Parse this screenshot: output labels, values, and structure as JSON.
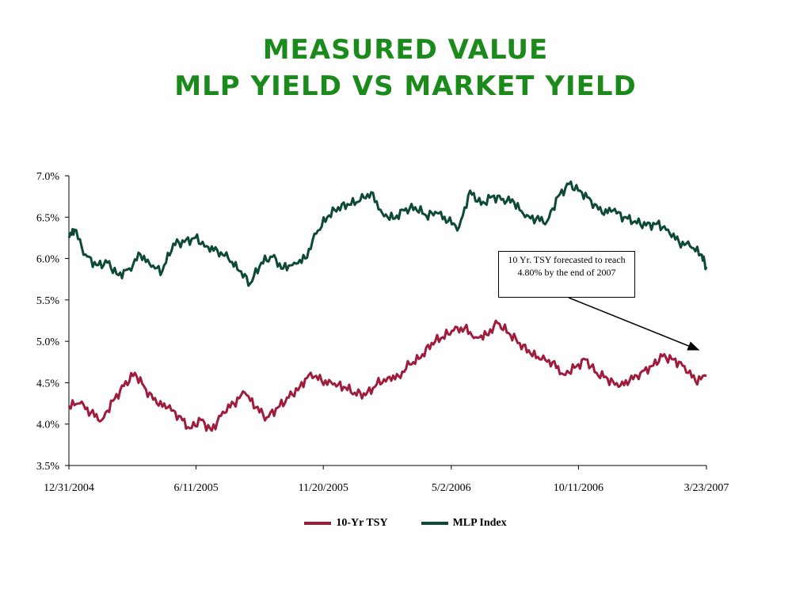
{
  "title": {
    "line1": "Measured Value",
    "line2": "MLP Yield vs Market Yield"
  },
  "annotation": {
    "text": "10 Yr. TSY forecasted to reach 4.80% by the end of 2007"
  },
  "colors": {
    "title": "#1a8a1a",
    "tsy": "#a01c3c",
    "mlp": "#0d4a34"
  },
  "chart_data": {
    "type": "line",
    "title": "",
    "xlabel": "",
    "ylabel": "",
    "ylim": [
      3.5,
      7.0
    ],
    "yticks": [
      "3.5%",
      "4.0%",
      "4.5%",
      "5.0%",
      "5.5%",
      "6.0%",
      "6.5%",
      "7.0%"
    ],
    "xticks": [
      "12/31/2004",
      "6/11/2005",
      "11/20/2005",
      "5/2/2006",
      "10/11/2006",
      "3/23/2007"
    ],
    "legend_position": "bottom",
    "grid": false,
    "series": [
      {
        "name": "10-Yr TSY",
        "color": "#a01c3c",
        "points": [
          [
            "12/31/2004",
            4.22
          ],
          [
            "1/14/2005",
            4.25
          ],
          [
            "1/28/2005",
            4.14
          ],
          [
            "2/11/2005",
            4.05
          ],
          [
            "2/25/2005",
            4.28
          ],
          [
            "3/11/2005",
            4.46
          ],
          [
            "3/25/2005",
            4.62
          ],
          [
            "4/8/2005",
            4.42
          ],
          [
            "4/22/2005",
            4.25
          ],
          [
            "5/6/2005",
            4.2
          ],
          [
            "5/20/2005",
            4.1
          ],
          [
            "6/3/2005",
            3.95
          ],
          [
            "6/17/2005",
            4.05
          ],
          [
            "7/1/2005",
            3.92
          ],
          [
            "7/15/2005",
            4.15
          ],
          [
            "7/29/2005",
            4.25
          ],
          [
            "8/12/2005",
            4.38
          ],
          [
            "8/26/2005",
            4.2
          ],
          [
            "9/9/2005",
            4.08
          ],
          [
            "9/23/2005",
            4.2
          ],
          [
            "10/7/2005",
            4.32
          ],
          [
            "10/21/2005",
            4.45
          ],
          [
            "11/4/2005",
            4.62
          ],
          [
            "11/18/2005",
            4.52
          ],
          [
            "12/2/2005",
            4.48
          ],
          [
            "12/16/2005",
            4.45
          ],
          [
            "12/30/2005",
            4.38
          ],
          [
            "1/13/2006",
            4.35
          ],
          [
            "1/27/2006",
            4.48
          ],
          [
            "2/10/2006",
            4.56
          ],
          [
            "2/24/2006",
            4.58
          ],
          [
            "3/10/2006",
            4.72
          ],
          [
            "3/24/2006",
            4.8
          ],
          [
            "4/7/2006",
            4.98
          ],
          [
            "4/21/2006",
            5.05
          ],
          [
            "5/5/2006",
            5.13
          ],
          [
            "5/19/2006",
            5.16
          ],
          [
            "6/2/2006",
            5.05
          ],
          [
            "6/16/2006",
            5.08
          ],
          [
            "6/30/2006",
            5.22
          ],
          [
            "7/14/2006",
            5.1
          ],
          [
            "7/28/2006",
            4.98
          ],
          [
            "8/11/2006",
            4.85
          ],
          [
            "8/25/2006",
            4.78
          ],
          [
            "9/8/2006",
            4.75
          ],
          [
            "9/22/2006",
            4.6
          ],
          [
            "10/6/2006",
            4.68
          ],
          [
            "10/20/2006",
            4.78
          ],
          [
            "11/3/2006",
            4.62
          ],
          [
            "11/17/2006",
            4.55
          ],
          [
            "12/1/2006",
            4.45
          ],
          [
            "12/15/2006",
            4.52
          ],
          [
            "12/29/2006",
            4.62
          ],
          [
            "1/12/2007",
            4.7
          ],
          [
            "1/26/2007",
            4.82
          ],
          [
            "2/9/2007",
            4.78
          ],
          [
            "2/23/2007",
            4.7
          ],
          [
            "3/9/2007",
            4.52
          ],
          [
            "3/23/2007",
            4.58
          ]
        ]
      },
      {
        "name": "MLP Index",
        "color": "#0d4a34",
        "points": [
          [
            "12/31/2004",
            6.25
          ],
          [
            "1/7/2005",
            6.35
          ],
          [
            "1/21/2005",
            6.05
          ],
          [
            "2/4/2005",
            5.92
          ],
          [
            "2/18/2005",
            5.95
          ],
          [
            "3/4/2005",
            5.8
          ],
          [
            "3/18/2005",
            5.88
          ],
          [
            "4/1/2005",
            6.05
          ],
          [
            "4/15/2005",
            5.9
          ],
          [
            "4/29/2005",
            5.85
          ],
          [
            "5/13/2005",
            6.18
          ],
          [
            "5/27/2005",
            6.2
          ],
          [
            "6/10/2005",
            6.25
          ],
          [
            "6/24/2005",
            6.15
          ],
          [
            "7/8/2005",
            6.1
          ],
          [
            "7/22/2005",
            6.0
          ],
          [
            "8/5/2005",
            5.85
          ],
          [
            "8/19/2005",
            5.7
          ],
          [
            "9/2/2005",
            5.95
          ],
          [
            "9/16/2005",
            6.02
          ],
          [
            "9/30/2005",
            5.88
          ],
          [
            "10/14/2005",
            5.95
          ],
          [
            "10/28/2005",
            6.0
          ],
          [
            "11/11/2005",
            6.3
          ],
          [
            "11/25/2005",
            6.5
          ],
          [
            "12/9/2005",
            6.62
          ],
          [
            "12/23/2005",
            6.65
          ],
          [
            "1/6/2006",
            6.7
          ],
          [
            "1/20/2006",
            6.8
          ],
          [
            "2/3/2006",
            6.55
          ],
          [
            "2/17/2006",
            6.48
          ],
          [
            "3/3/2006",
            6.58
          ],
          [
            "3/17/2006",
            6.62
          ],
          [
            "3/31/2006",
            6.52
          ],
          [
            "4/14/2006",
            6.55
          ],
          [
            "4/28/2006",
            6.45
          ],
          [
            "5/12/2006",
            6.38
          ],
          [
            "5/26/2006",
            6.82
          ],
          [
            "6/9/2006",
            6.65
          ],
          [
            "6/23/2006",
            6.75
          ],
          [
            "7/7/2006",
            6.72
          ],
          [
            "7/21/2006",
            6.68
          ],
          [
            "8/4/2006",
            6.5
          ],
          [
            "8/18/2006",
            6.48
          ],
          [
            "9/1/2006",
            6.45
          ],
          [
            "9/15/2006",
            6.75
          ],
          [
            "9/29/2006",
            6.9
          ],
          [
            "10/13/2006",
            6.82
          ],
          [
            "10/27/2006",
            6.7
          ],
          [
            "11/10/2006",
            6.55
          ],
          [
            "11/24/2006",
            6.58
          ],
          [
            "12/8/2006",
            6.5
          ],
          [
            "12/22/2006",
            6.45
          ],
          [
            "1/5/2007",
            6.4
          ],
          [
            "1/19/2007",
            6.42
          ],
          [
            "2/2/2007",
            6.35
          ],
          [
            "2/16/2007",
            6.2
          ],
          [
            "3/2/2007",
            6.15
          ],
          [
            "3/16/2007",
            6.05
          ],
          [
            "3/23/2007",
            5.9
          ]
        ]
      }
    ]
  }
}
